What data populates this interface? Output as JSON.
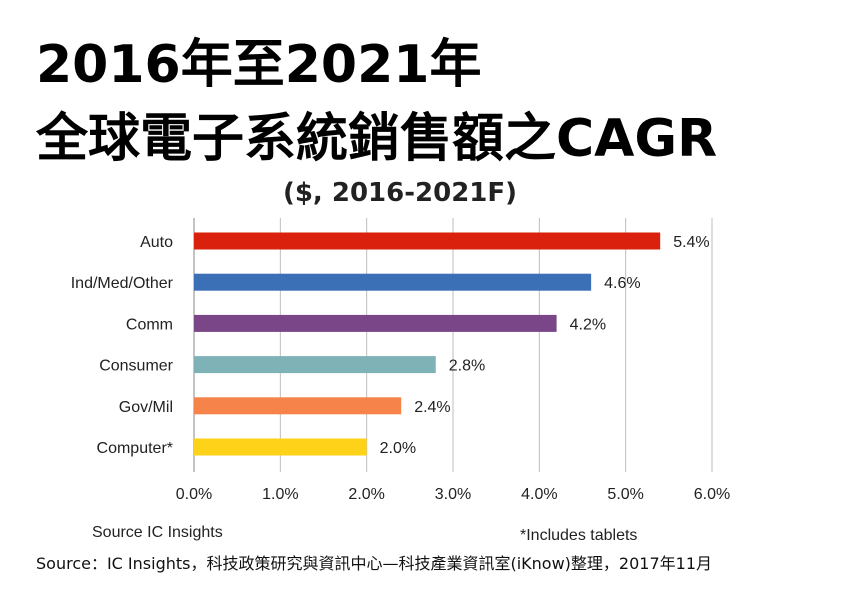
{
  "title_line1": "2016年至2021年",
  "title_line2": "全球電子系統銷售額之CAGR",
  "subtitle": "($, 2016-2021F)",
  "source_left": "Source  IC Insights",
  "note_right": "*Includes tablets",
  "footer": "Source：IC Insights，科技政策研究與資訊中心—科技產業資訊室(iKnow)整理，2017年11月",
  "chart_data": {
    "type": "bar",
    "orientation": "horizontal",
    "categories": [
      "Auto",
      "Ind/Med/Other",
      "Comm",
      "Consumer",
      "Gov/Mil",
      "Computer*"
    ],
    "values": [
      5.4,
      4.6,
      4.2,
      2.8,
      2.4,
      2.0
    ],
    "value_labels": [
      "5.4%",
      "4.6%",
      "4.2%",
      "2.8%",
      "2.4%",
      "2.0%"
    ],
    "colors": [
      "#d9210e",
      "#3b6fb6",
      "#7a4687",
      "#7fb2b7",
      "#f5834a",
      "#ffd21a"
    ],
    "xlim": [
      0,
      6
    ],
    "xticks": [
      0,
      1,
      2,
      3,
      4,
      5,
      6
    ],
    "xtick_labels": [
      "0.0%",
      "1.0%",
      "2.0%",
      "3.0%",
      "4.0%",
      "5.0%",
      "6.0%"
    ],
    "grid": "vertical"
  }
}
